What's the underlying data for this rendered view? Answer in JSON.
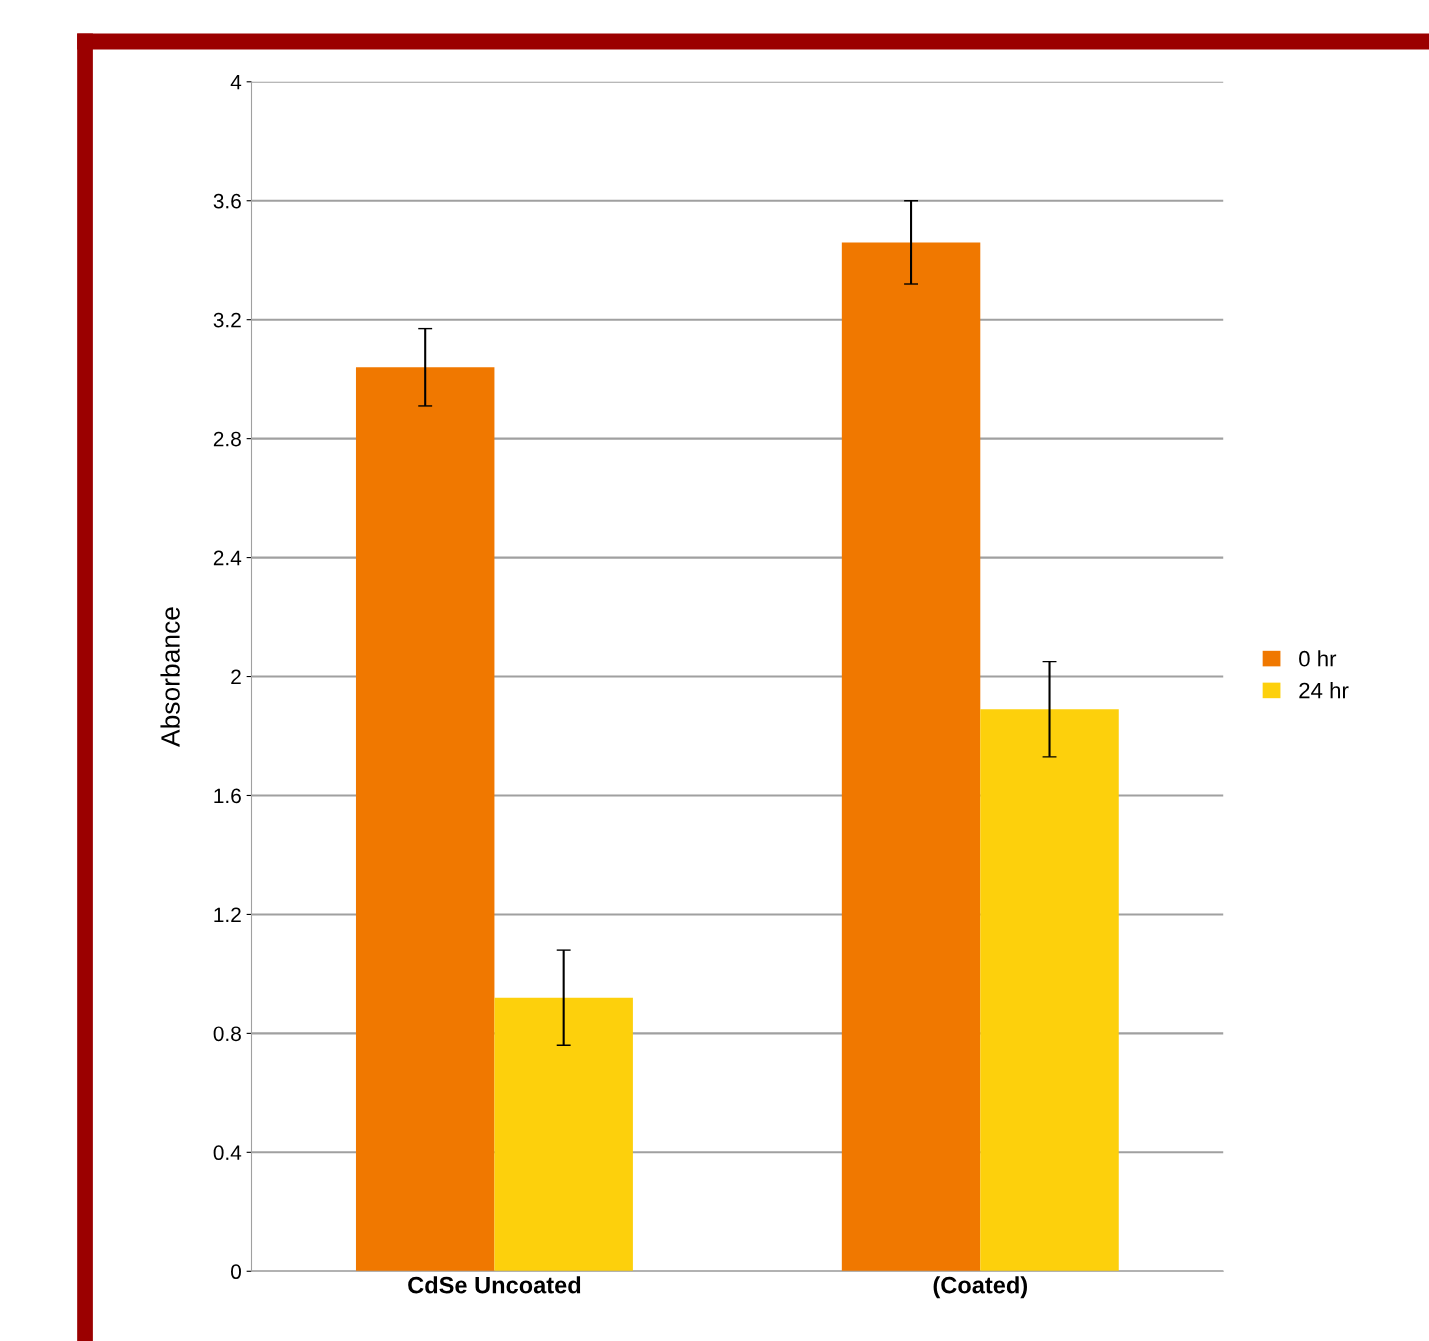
{
  "chart_data": {
    "type": "bar",
    "ylabel": "Absorbance",
    "categories": [
      "CdSe Uncoated",
      "(Coated)"
    ],
    "series": [
      {
        "name": "0 hr",
        "color": "#f07800",
        "values": [
          3.04,
          3.46
        ],
        "errors": [
          0.13,
          0.14
        ]
      },
      {
        "name": "24 hr",
        "color": "#fdd00c",
        "values": [
          0.92,
          1.89
        ],
        "errors": [
          0.16,
          0.16
        ]
      }
    ],
    "ylim": [
      0,
      4
    ],
    "yticks": [
      0,
      0.4,
      0.8,
      1.2,
      1.6,
      2,
      2.4,
      2.8,
      3.2,
      3.6,
      4
    ],
    "grid": "y",
    "legend": "right"
  }
}
